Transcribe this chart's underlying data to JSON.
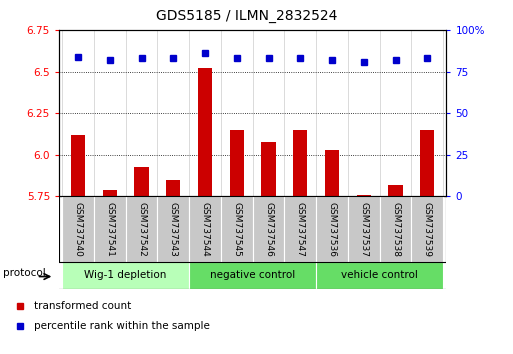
{
  "title": "GDS5185 / ILMN_2832524",
  "samples": [
    "GSM737540",
    "GSM737541",
    "GSM737542",
    "GSM737543",
    "GSM737544",
    "GSM737545",
    "GSM737546",
    "GSM737547",
    "GSM737536",
    "GSM737537",
    "GSM737538",
    "GSM737539"
  ],
  "transformed_count": [
    6.12,
    5.79,
    5.93,
    5.85,
    6.52,
    6.15,
    6.08,
    6.15,
    6.03,
    5.76,
    5.82,
    6.15
  ],
  "percentile_rank": [
    84,
    82,
    83,
    83,
    86,
    83,
    83,
    83,
    82,
    81,
    82,
    83
  ],
  "ylim_left": [
    5.75,
    6.75
  ],
  "ylim_right": [
    0,
    100
  ],
  "yticks_left": [
    5.75,
    6.0,
    6.25,
    6.5,
    6.75
  ],
  "yticks_right": [
    0,
    25,
    50,
    75,
    100
  ],
  "groups": [
    {
      "label": "Wig-1 depletion",
      "start": 0,
      "end": 4,
      "color": "#aaffaa"
    },
    {
      "label": "negative control",
      "start": 4,
      "end": 8,
      "color": "#66ee66"
    },
    {
      "label": "vehicle control",
      "start": 8,
      "end": 12,
      "color": "#66ee66"
    }
  ],
  "bar_color": "#cc0000",
  "dot_color": "#0000cc",
  "label_bg": "#c8c8c8",
  "x_label_fontsize": 6.5,
  "y_label_fontsize": 7.5,
  "title_fontsize": 10,
  "legend_items": [
    "transformed count",
    "percentile rank within the sample"
  ],
  "protocol_label": "protocol"
}
